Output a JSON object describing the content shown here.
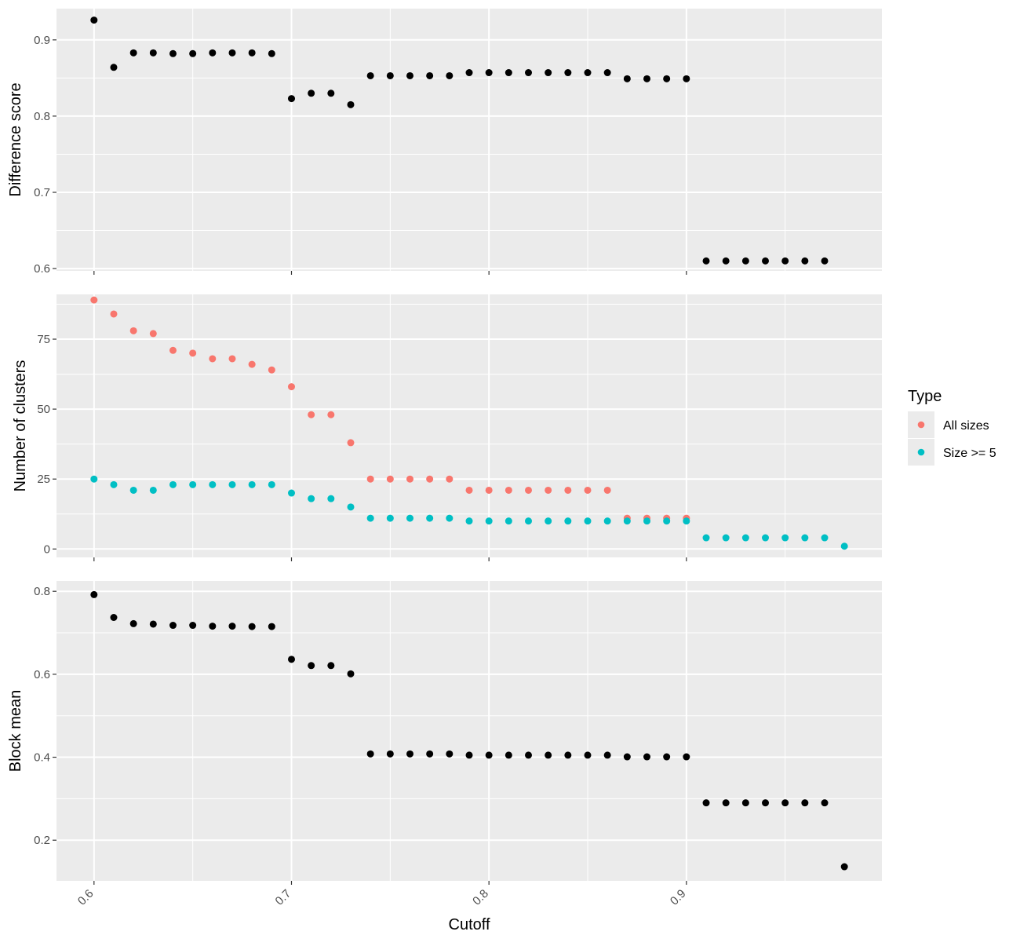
{
  "chart_data": {
    "type": "scatter",
    "xlabel": "Cutoff",
    "x_ticks": [
      "0.6",
      "0.7",
      "0.8",
      "0.9"
    ],
    "xlim": [
      0.581,
      0.999
    ],
    "colors": {
      "all_sizes": "#F8766D",
      "size_ge5": "#00BFC4",
      "point": "#000000",
      "panel_bg": "#EBEBEB",
      "grid": "#FFFFFF"
    },
    "legend": {
      "title": "Type",
      "position": "right",
      "entries": [
        {
          "label": "All sizes",
          "color": "#F8766D"
        },
        {
          "label": "Size >= 5",
          "color": "#00BFC4"
        }
      ]
    },
    "panels": [
      {
        "ylabel": "Difference score",
        "ylim": [
          0.597,
          0.941
        ],
        "y_ticks": [
          "0.6",
          "0.7",
          "0.8",
          "0.9"
        ],
        "y_tick_values": [
          0.6,
          0.7,
          0.8,
          0.9
        ],
        "series": [
          {
            "color": "#000000",
            "x": [
              0.6,
              0.61,
              0.62,
              0.63,
              0.64,
              0.65,
              0.66,
              0.67,
              0.68,
              0.69,
              0.7,
              0.71,
              0.72,
              0.73,
              0.74,
              0.75,
              0.76,
              0.77,
              0.78,
              0.79,
              0.8,
              0.81,
              0.82,
              0.83,
              0.84,
              0.85,
              0.86,
              0.87,
              0.88,
              0.89,
              0.9,
              0.91,
              0.92,
              0.93,
              0.94,
              0.95,
              0.96,
              0.97
            ],
            "y": [
              0.926,
              0.864,
              0.883,
              0.883,
              0.882,
              0.882,
              0.883,
              0.883,
              0.883,
              0.882,
              0.823,
              0.83,
              0.83,
              0.815,
              0.853,
              0.853,
              0.853,
              0.853,
              0.853,
              0.857,
              0.857,
              0.857,
              0.857,
              0.857,
              0.857,
              0.857,
              0.857,
              0.849,
              0.849,
              0.849,
              0.849,
              0.61,
              0.61,
              0.61,
              0.61,
              0.61,
              0.61,
              0.61
            ]
          }
        ]
      },
      {
        "ylabel": "Number of clusters",
        "ylim": [
          -3,
          91
        ],
        "y_ticks": [
          "0",
          "25",
          "50",
          "75"
        ],
        "y_tick_values": [
          0,
          25,
          50,
          75
        ],
        "series": [
          {
            "name": "All sizes",
            "color": "#F8766D",
            "x": [
              0.6,
              0.61,
              0.62,
              0.63,
              0.64,
              0.65,
              0.66,
              0.67,
              0.68,
              0.69,
              0.7,
              0.71,
              0.72,
              0.73,
              0.74,
              0.75,
              0.76,
              0.77,
              0.78,
              0.79,
              0.8,
              0.81,
              0.82,
              0.83,
              0.84,
              0.85,
              0.86,
              0.87,
              0.88,
              0.89,
              0.9
            ],
            "y": [
              89,
              84,
              78,
              77,
              71,
              70,
              68,
              68,
              66,
              64,
              58,
              48,
              48,
              38,
              25,
              25,
              25,
              25,
              25,
              21,
              21,
              21,
              21,
              21,
              21,
              21,
              21,
              11,
              11,
              11,
              11
            ]
          },
          {
            "name": "Size >= 5",
            "color": "#00BFC4",
            "x": [
              0.6,
              0.61,
              0.62,
              0.63,
              0.64,
              0.65,
              0.66,
              0.67,
              0.68,
              0.69,
              0.7,
              0.71,
              0.72,
              0.73,
              0.74,
              0.75,
              0.76,
              0.77,
              0.78,
              0.79,
              0.8,
              0.81,
              0.82,
              0.83,
              0.84,
              0.85,
              0.86,
              0.87,
              0.88,
              0.89,
              0.9,
              0.91,
              0.92,
              0.93,
              0.94,
              0.95,
              0.96,
              0.97,
              0.98
            ],
            "y": [
              25,
              23,
              21,
              21,
              23,
              23,
              23,
              23,
              23,
              23,
              20,
              18,
              18,
              15,
              11,
              11,
              11,
              11,
              11,
              10,
              10,
              10,
              10,
              10,
              10,
              10,
              10,
              10,
              10,
              10,
              10,
              4,
              4,
              4,
              4,
              4,
              4,
              4,
              1
            ]
          }
        ]
      },
      {
        "ylabel": "Block mean",
        "ylim": [
          0.102,
          0.825
        ],
        "y_ticks": [
          "0.2",
          "0.4",
          "0.6",
          "0.8"
        ],
        "y_tick_values": [
          0.2,
          0.4,
          0.6,
          0.8
        ],
        "series": [
          {
            "color": "#000000",
            "x": [
              0.6,
              0.61,
              0.62,
              0.63,
              0.64,
              0.65,
              0.66,
              0.67,
              0.68,
              0.69,
              0.7,
              0.71,
              0.72,
              0.73,
              0.74,
              0.75,
              0.76,
              0.77,
              0.78,
              0.79,
              0.8,
              0.81,
              0.82,
              0.83,
              0.84,
              0.85,
              0.86,
              0.87,
              0.88,
              0.89,
              0.9,
              0.91,
              0.92,
              0.93,
              0.94,
              0.95,
              0.96,
              0.97,
              0.98
            ],
            "y": [
              0.792,
              0.737,
              0.722,
              0.721,
              0.718,
              0.718,
              0.716,
              0.716,
              0.715,
              0.715,
              0.636,
              0.621,
              0.621,
              0.601,
              0.408,
              0.408,
              0.408,
              0.408,
              0.408,
              0.405,
              0.405,
              0.405,
              0.405,
              0.405,
              0.405,
              0.405,
              0.405,
              0.401,
              0.401,
              0.401,
              0.401,
              0.29,
              0.29,
              0.29,
              0.29,
              0.29,
              0.29,
              0.29,
              0.136
            ]
          }
        ]
      }
    ]
  }
}
